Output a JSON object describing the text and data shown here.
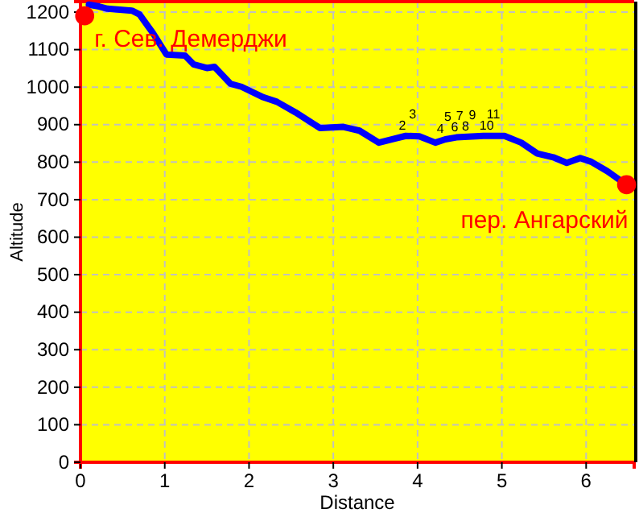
{
  "chart_data": {
    "type": "line",
    "xlabel": "Distance",
    "ylabel": "Altitude",
    "xlim": [
      0,
      6.57
    ],
    "ylim": [
      0,
      1228
    ],
    "xticks": [
      0,
      1,
      2,
      3,
      4,
      5,
      6
    ],
    "yticks": [
      0,
      100,
      200,
      300,
      400,
      500,
      600,
      700,
      800,
      900,
      1000,
      1100,
      1200
    ],
    "grid": true,
    "marker": "none",
    "line_style": "solid",
    "series": [
      {
        "color": "#0000ff",
        "x": [
          0.1,
          0.22,
          0.32,
          0.61,
          0.7,
          0.86,
          1.02,
          1.24,
          1.34,
          1.5,
          1.59,
          1.78,
          1.91,
          2.17,
          2.33,
          2.55,
          2.84,
          3.12,
          3.31,
          3.54,
          3.73,
          3.86,
          4.02,
          4.21,
          4.33,
          4.46,
          4.78,
          5.03,
          5.23,
          5.42,
          5.61,
          5.77,
          5.93,
          6.06,
          6.25,
          6.41
        ],
        "values": [
          1220,
          1215,
          1209,
          1204,
          1194,
          1144,
          1087,
          1084,
          1061,
          1051,
          1054,
          1009,
          1001,
          973,
          961,
          933,
          891,
          894,
          884,
          852,
          863,
          870,
          869,
          852,
          861,
          866,
          870,
          870,
          852,
          823,
          813,
          798,
          811,
          801,
          776,
          751
        ]
      },
      {
        "type": "scatter",
        "color": "#ff0000",
        "marker": "circle",
        "x": [
          0.05,
          6.48
        ],
        "values": [
          1190,
          740
        ]
      }
    ],
    "annotations": [
      {
        "text": "г. Сев. Демерджи",
        "x": 0.05,
        "y": 1190
      },
      {
        "text": "пер. Ангарский",
        "x": 6.48,
        "y": 740
      },
      {
        "text": "2",
        "x": 3.82,
        "y": 870
      },
      {
        "text": "3",
        "x": 3.94,
        "y": 870
      },
      {
        "text": "4",
        "x": 4.27,
        "y": 860
      },
      {
        "text": "5",
        "x": 4.36,
        "y": 862
      },
      {
        "text": "6",
        "x": 4.44,
        "y": 866
      },
      {
        "text": "7",
        "x": 4.5,
        "y": 866
      },
      {
        "text": "8",
        "x": 4.57,
        "y": 868
      },
      {
        "text": "9",
        "x": 4.65,
        "y": 868
      },
      {
        "text": "10",
        "x": 4.82,
        "y": 870
      },
      {
        "text": "11",
        "x": 4.9,
        "y": 870
      }
    ]
  }
}
